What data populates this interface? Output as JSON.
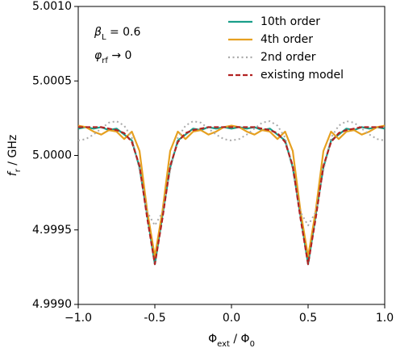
{
  "chart_data": {
    "type": "line",
    "x_label": [
      "Φ",
      "ext",
      " / Φ",
      "0"
    ],
    "y_label": [
      "f",
      "r",
      " / GHz"
    ],
    "annotations": [
      [
        "β",
        "L",
        " = 0.6"
      ],
      [
        "φ",
        "rf",
        " → 0"
      ]
    ],
    "x": [
      -1,
      -0.95,
      -0.9,
      -0.85,
      -0.8,
      -0.75,
      -0.7,
      -0.65,
      -0.6,
      -0.55,
      -0.5,
      -0.45,
      -0.4,
      -0.35,
      -0.3,
      -0.25,
      -0.2,
      -0.15,
      -0.1,
      -0.05,
      0,
      0.05,
      0.1,
      0.15,
      0.2,
      0.25,
      0.3,
      0.35,
      0.4,
      0.45,
      0.5,
      0.55,
      0.6,
      0.65,
      0.7,
      0.75,
      0.8,
      0.85,
      0.9,
      0.95,
      1
    ],
    "series": [
      {
        "name": "10th order",
        "color": "#1a9e8a",
        "dash": "solid",
        "values": [
          5.00018,
          5.00019,
          5.00018,
          5.00019,
          5.00017,
          5.00018,
          5.00014,
          5.0001,
          4.99992,
          4.9996,
          4.99927,
          4.9996,
          4.99992,
          5.0001,
          5.00014,
          5.00018,
          5.00017,
          5.00019,
          5.00018,
          5.00019,
          5.00018,
          5.00019,
          5.00018,
          5.00019,
          5.00017,
          5.00018,
          5.00014,
          5.0001,
          4.99992,
          4.9996,
          4.99927,
          4.9996,
          4.99992,
          5.0001,
          5.00014,
          5.00018,
          5.00017,
          5.00019,
          5.00018,
          5.00019,
          5.00018
        ]
      },
      {
        "name": "4th order",
        "color": "#e6a020",
        "dash": "solid",
        "values": [
          5.0002,
          5.00019,
          5.00016,
          5.00014,
          5.00017,
          5.00016,
          5.00011,
          5.00016,
          5.00003,
          4.99963,
          4.99932,
          4.99963,
          5.00003,
          5.00016,
          5.00011,
          5.00016,
          5.00017,
          5.00014,
          5.00016,
          5.00019,
          5.0002,
          5.00019,
          5.00016,
          5.00014,
          5.00017,
          5.00016,
          5.00011,
          5.00016,
          5.00003,
          4.99963,
          4.99932,
          4.99963,
          5.00003,
          5.00016,
          5.00011,
          5.00016,
          5.00017,
          5.00014,
          5.00016,
          5.00019,
          5.0002
        ]
      },
      {
        "name": "2nd order",
        "color": "#aaaaaa",
        "dash": "dotted",
        "values": [
          5.0001,
          5.00011,
          5.00014,
          5.00018,
          5.00022,
          5.00023,
          5.0002,
          5.00012,
          4.9999,
          4.99962,
          4.99953,
          4.99962,
          4.9999,
          5.00012,
          5.0002,
          5.00023,
          5.00022,
          5.00018,
          5.00014,
          5.00011,
          5.0001,
          5.00011,
          5.00014,
          5.00018,
          5.00022,
          5.00023,
          5.0002,
          5.00012,
          4.9999,
          4.99962,
          4.99953,
          4.99962,
          4.9999,
          5.00012,
          5.0002,
          5.00023,
          5.00022,
          5.00018,
          5.00014,
          5.00011,
          5.0001
        ]
      },
      {
        "name": "existing model",
        "color": "#b22222",
        "dash": "dashed",
        "values": [
          5.00019,
          5.00019,
          5.00019,
          5.00019,
          5.00018,
          5.00017,
          5.00015,
          5.00009,
          4.99993,
          4.99958,
          4.99927,
          4.99958,
          4.99993,
          5.00009,
          5.00015,
          5.00017,
          5.00018,
          5.00019,
          5.00019,
          5.00019,
          5.00019,
          5.00019,
          5.00019,
          5.00019,
          5.00018,
          5.00017,
          5.00015,
          5.00009,
          4.99993,
          4.99958,
          4.99927,
          4.99958,
          4.99993,
          5.00009,
          5.00015,
          5.00017,
          5.00018,
          5.00019,
          5.00019,
          5.00019,
          5.00019
        ]
      }
    ],
    "xlim": [
      -1,
      1
    ],
    "xticks": [
      {
        "value": -1,
        "label": "−1.0"
      },
      -0.5,
      {
        "value": 0,
        "label": "0.0"
      },
      0.5,
      {
        "value": 1,
        "label": "1.0"
      }
    ],
    "ylim": [
      4.999,
      5.001
    ],
    "yticks": [
      {
        "value": 4.999,
        "label": "4.9990"
      },
      4.9995,
      {
        "value": 5,
        "label": "5.0000"
      },
      5.0005,
      {
        "value": 5.001,
        "label": "5.0010"
      }
    ],
    "grid": false,
    "legend": "upper right"
  }
}
